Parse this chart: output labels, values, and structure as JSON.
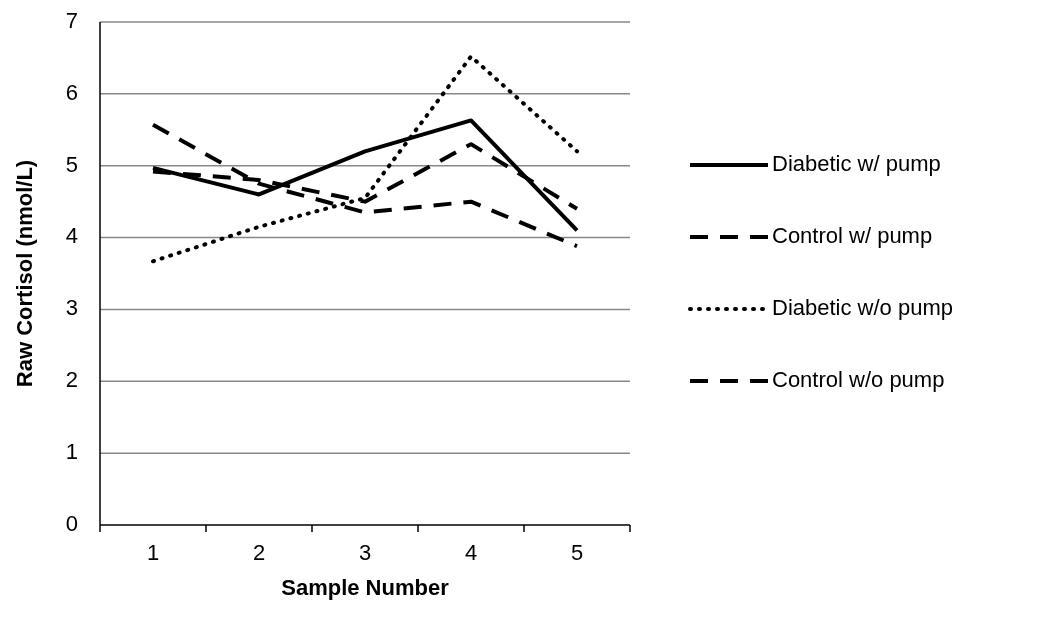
{
  "chart_data": {
    "type": "line",
    "xlabel": "Sample Number",
    "ylabel": "Raw Cortisol (nmol/L)",
    "categories": [
      "1",
      "2",
      "3",
      "4",
      "5"
    ],
    "series": [
      {
        "name": "Diabetic w/ pump",
        "color": "#000000",
        "line_style": "solid",
        "values": [
          4.97,
          4.6,
          5.2,
          5.63,
          4.1
        ]
      },
      {
        "name": "Control w/ pump",
        "color": "#000000",
        "line_style": "dashed",
        "values": [
          4.92,
          4.8,
          4.5,
          5.3,
          4.4
        ]
      },
      {
        "name": "Diabetic w/o pump",
        "color": "#000000",
        "line_style": "dotted",
        "values": [
          3.67,
          4.15,
          4.55,
          6.52,
          5.2
        ]
      },
      {
        "name": "Control w/o pump",
        "color": "#000000",
        "line_style": "dashed",
        "values": [
          5.57,
          4.75,
          4.35,
          4.5,
          3.88
        ]
      }
    ],
    "ylim": [
      0,
      7
    ],
    "yticks": [
      0,
      1,
      2,
      3,
      4,
      5,
      6,
      7
    ],
    "grid": "y",
    "legend": "right",
    "marker": "none"
  }
}
